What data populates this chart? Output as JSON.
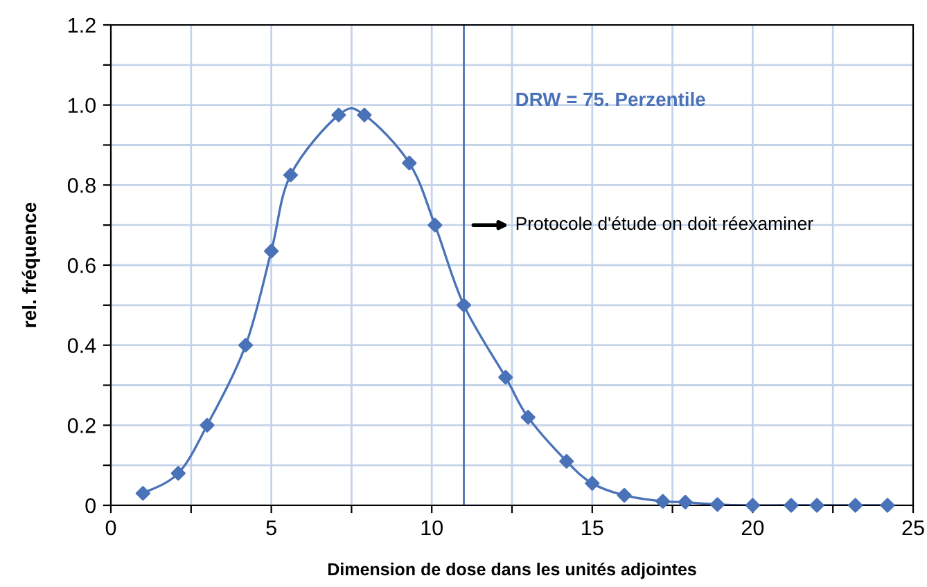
{
  "chart_data": {
    "type": "line",
    "xlabel": "Dimension de dose dans les unités adjointes",
    "ylabel": "rel. fréquence",
    "x": [
      1.0,
      2.1,
      3.0,
      4.2,
      5.0,
      5.6,
      7.1,
      7.9,
      9.3,
      10.1,
      11.0,
      12.3,
      13.0,
      14.2,
      15.0,
      16.0,
      17.2,
      17.9,
      18.9,
      20.0,
      21.2,
      22.0,
      23.2,
      24.2
    ],
    "series": [
      {
        "color": "#4a72b8",
        "values": [
          0.03,
          0.08,
          0.2,
          0.4,
          0.635,
          0.825,
          0.975,
          0.975,
          0.855,
          0.7,
          0.5,
          0.32,
          0.22,
          0.11,
          0.055,
          0.025,
          0.01,
          0.008,
          0.002,
          0,
          0,
          0,
          0,
          0
        ]
      }
    ],
    "marker": "diamond",
    "line_style": "solid",
    "grid": true,
    "legend": false,
    "xlim": [
      0,
      25
    ],
    "xticks": [
      0,
      {
        "value": 2.5,
        "label": null
      },
      5,
      {
        "value": 7.5,
        "label": null
      },
      10,
      {
        "value": 12.5,
        "label": null
      },
      15,
      {
        "value": 17.5,
        "label": null
      },
      20,
      {
        "value": 22.5,
        "label": null
      },
      25
    ],
    "ylim": [
      0,
      1.2
    ],
    "yticks": [
      {
        "value": 0,
        "label": "0"
      },
      {
        "value": 0.1,
        "label": null
      },
      0.2,
      {
        "value": 0.3,
        "label": null
      },
      0.4,
      {
        "value": 0.5,
        "label": null
      },
      0.6,
      {
        "value": 0.7,
        "label": null
      },
      0.8,
      {
        "value": 0.9,
        "label": null
      },
      {
        "value": 1.0,
        "label": "1.0"
      },
      {
        "value": 1.1,
        "label": null
      },
      1.2
    ],
    "ref_lines": [
      {
        "axis": "x",
        "value": 11,
        "color": "#4a72b8"
      }
    ],
    "annotations": [
      "DRW = 75. Perzentile",
      "Protocole d'étude on doit réexaminer"
    ]
  }
}
